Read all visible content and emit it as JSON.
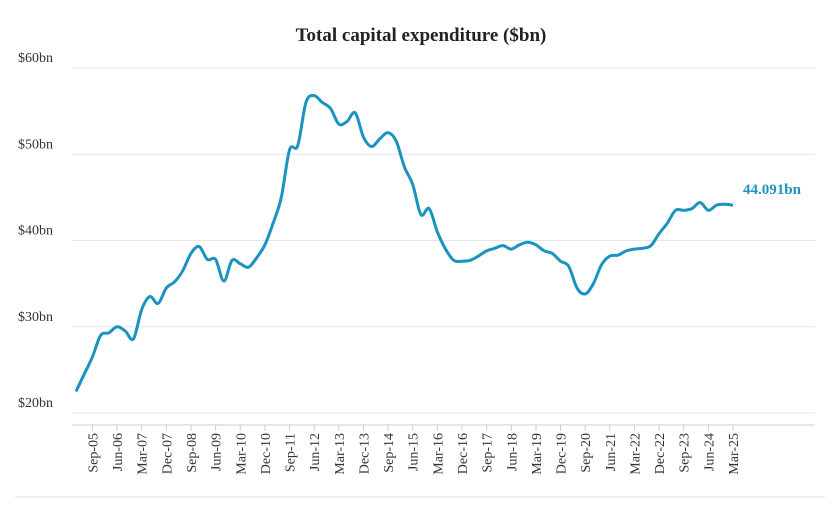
{
  "chart_data": {
    "type": "line",
    "title": "Total capital expenditure ($bn)",
    "categories": [
      null,
      null,
      "Sep-05",
      null,
      null,
      "Jun-06",
      null,
      null,
      "Mar-07",
      null,
      null,
      "Dec-07",
      null,
      null,
      "Sep-08",
      null,
      null,
      "Jun-09",
      null,
      null,
      "Mar-10",
      null,
      null,
      "Dec-10",
      null,
      null,
      "Sep-11",
      null,
      null,
      "Jun-12",
      null,
      null,
      "Mar-13",
      null,
      null,
      "Dec-13",
      null,
      null,
      "Sep-14",
      null,
      null,
      "Jun-15",
      null,
      null,
      "Mar-16",
      null,
      null,
      "Dec-16",
      null,
      null,
      "Sep-17",
      null,
      null,
      "Jun-18",
      null,
      null,
      "Mar-19",
      null,
      null,
      "Dec-19",
      null,
      null,
      "Sep-20",
      null,
      null,
      "Jun-21",
      null,
      null,
      "Mar-22",
      null,
      null,
      "Dec-22",
      null,
      null,
      "Sep-23",
      null,
      null,
      "Jun-24",
      null,
      null,
      "Mar-25"
    ],
    "values": [
      22.5,
      24.5,
      26.5,
      29,
      29.3,
      30,
      29.5,
      28.6,
      32,
      33.5,
      32.7,
      34.5,
      35.2,
      36.5,
      38.5,
      39.3,
      37.8,
      37.8,
      35.3,
      37.7,
      37.3,
      36.9,
      38,
      39.5,
      42,
      45,
      50.5,
      51,
      56,
      56.8,
      56,
      55.3,
      53.5,
      53.8,
      54.8,
      52,
      50.9,
      51.8,
      52.5,
      51.5,
      48.5,
      46.5,
      43,
      43.7,
      41,
      39,
      37.7,
      37.6,
      37.7,
      38.2,
      38.8,
      39.1,
      39.4,
      39,
      39.5,
      39.8,
      39.5,
      38.8,
      38.5,
      37.6,
      37,
      34.5,
      33.8,
      35,
      37.2,
      38.2,
      38.3,
      38.8,
      39,
      39.1,
      39.4,
      40.8,
      42,
      43.5,
      43.5,
      43.7,
      44.4,
      43.5,
      44.1,
      44.2,
      44.091
    ],
    "value_labels": [
      null,
      null,
      null,
      null,
      null,
      null,
      null,
      null,
      null,
      null,
      null,
      null,
      null,
      null,
      null,
      null,
      null,
      null,
      null,
      null,
      null,
      null,
      null,
      null,
      null,
      null,
      null,
      null,
      null,
      null,
      null,
      null,
      null,
      null,
      null,
      null,
      null,
      null,
      null,
      null,
      null,
      null,
      null,
      null,
      null,
      null,
      null,
      null,
      null,
      null,
      null,
      null,
      null,
      null,
      null,
      null,
      null,
      null,
      null,
      null,
      null,
      null,
      null,
      null,
      null,
      null,
      null,
      null,
      null,
      null,
      null,
      null,
      null,
      null,
      null,
      null,
      null,
      null,
      null,
      null,
      "44.091bn"
    ],
    "color": "#1a93c1",
    "ylim": [
      20,
      60
    ],
    "yticks": [
      {
        "value": 20,
        "label": "$20bn"
      },
      {
        "value": 30,
        "label": "$30bn"
      },
      {
        "value": 40,
        "label": "$40bn"
      },
      {
        "value": 50,
        "label": "$50bn"
      },
      {
        "value": 60,
        "label": "$60bn"
      }
    ],
    "grid": true
  }
}
